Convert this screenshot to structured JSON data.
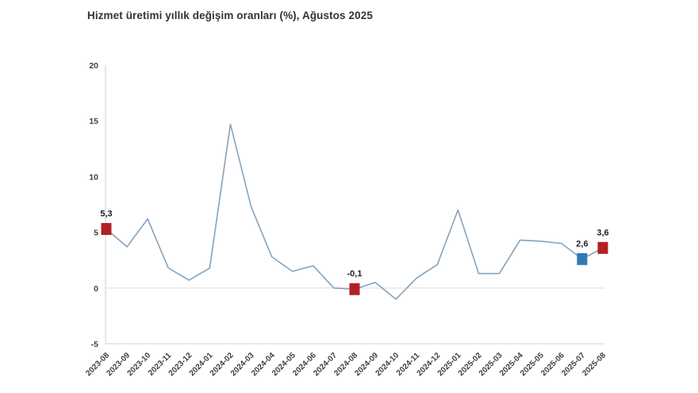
{
  "title": "Hizmet üretimi yıllık değişim oranları (%), Ağustos 2025",
  "chart_data": {
    "type": "line",
    "title": "Hizmet üretimi yıllık değişim oranları (%), Ağustos 2025",
    "xlabel": "",
    "ylabel": "",
    "ylim": [
      -5,
      20
    ],
    "yticks": [
      -5,
      0,
      5,
      10,
      15,
      20
    ],
    "grid": "zero-line-only",
    "legend": "none",
    "categories": [
      "2023-08",
      "2023-09",
      "2023-10",
      "2023-11",
      "2023-12",
      "2024-01",
      "2024-02",
      "2024-03",
      "2024-04",
      "2024-05",
      "2024-06",
      "2024-07",
      "2024-08",
      "2024-09",
      "2024-10",
      "2024-11",
      "2024-12",
      "2025-01",
      "2025-02",
      "2025-03",
      "2025-04",
      "2025-05",
      "2025-06",
      "2025-07",
      "2025-08"
    ],
    "series": [
      {
        "name": "Hizmet üretimi yıllık değişim (%)",
        "values": [
          5.3,
          3.7,
          6.2,
          1.8,
          0.7,
          1.8,
          14.7,
          7.3,
          2.8,
          1.5,
          2.0,
          0.0,
          -0.1,
          0.5,
          -1.0,
          0.9,
          2.1,
          7.0,
          1.3,
          1.3,
          4.3,
          4.2,
          4.0,
          2.6,
          3.6
        ]
      }
    ],
    "highlight_markers": [
      {
        "category": "2023-08",
        "index": 0,
        "value": 5.3,
        "label": "5,3",
        "color": "#b02025",
        "shape": "square"
      },
      {
        "category": "2024-08",
        "index": 12,
        "value": -0.1,
        "label": "-0,1",
        "color": "#b02025",
        "shape": "square"
      },
      {
        "category": "2025-07",
        "index": 23,
        "value": 2.6,
        "label": "2,6",
        "color": "#3179b5",
        "shape": "square"
      },
      {
        "category": "2025-08",
        "index": 24,
        "value": 3.6,
        "label": "3,6",
        "color": "#b02025",
        "shape": "square"
      }
    ],
    "colors": {
      "line": "#84a3bd",
      "axis": "#d9d9d9",
      "zero_line": "#e4e4e4",
      "tick_text": "#3f3f3f",
      "label_text": "#222222",
      "title_text": "#333333",
      "background": "#ffffff"
    }
  }
}
